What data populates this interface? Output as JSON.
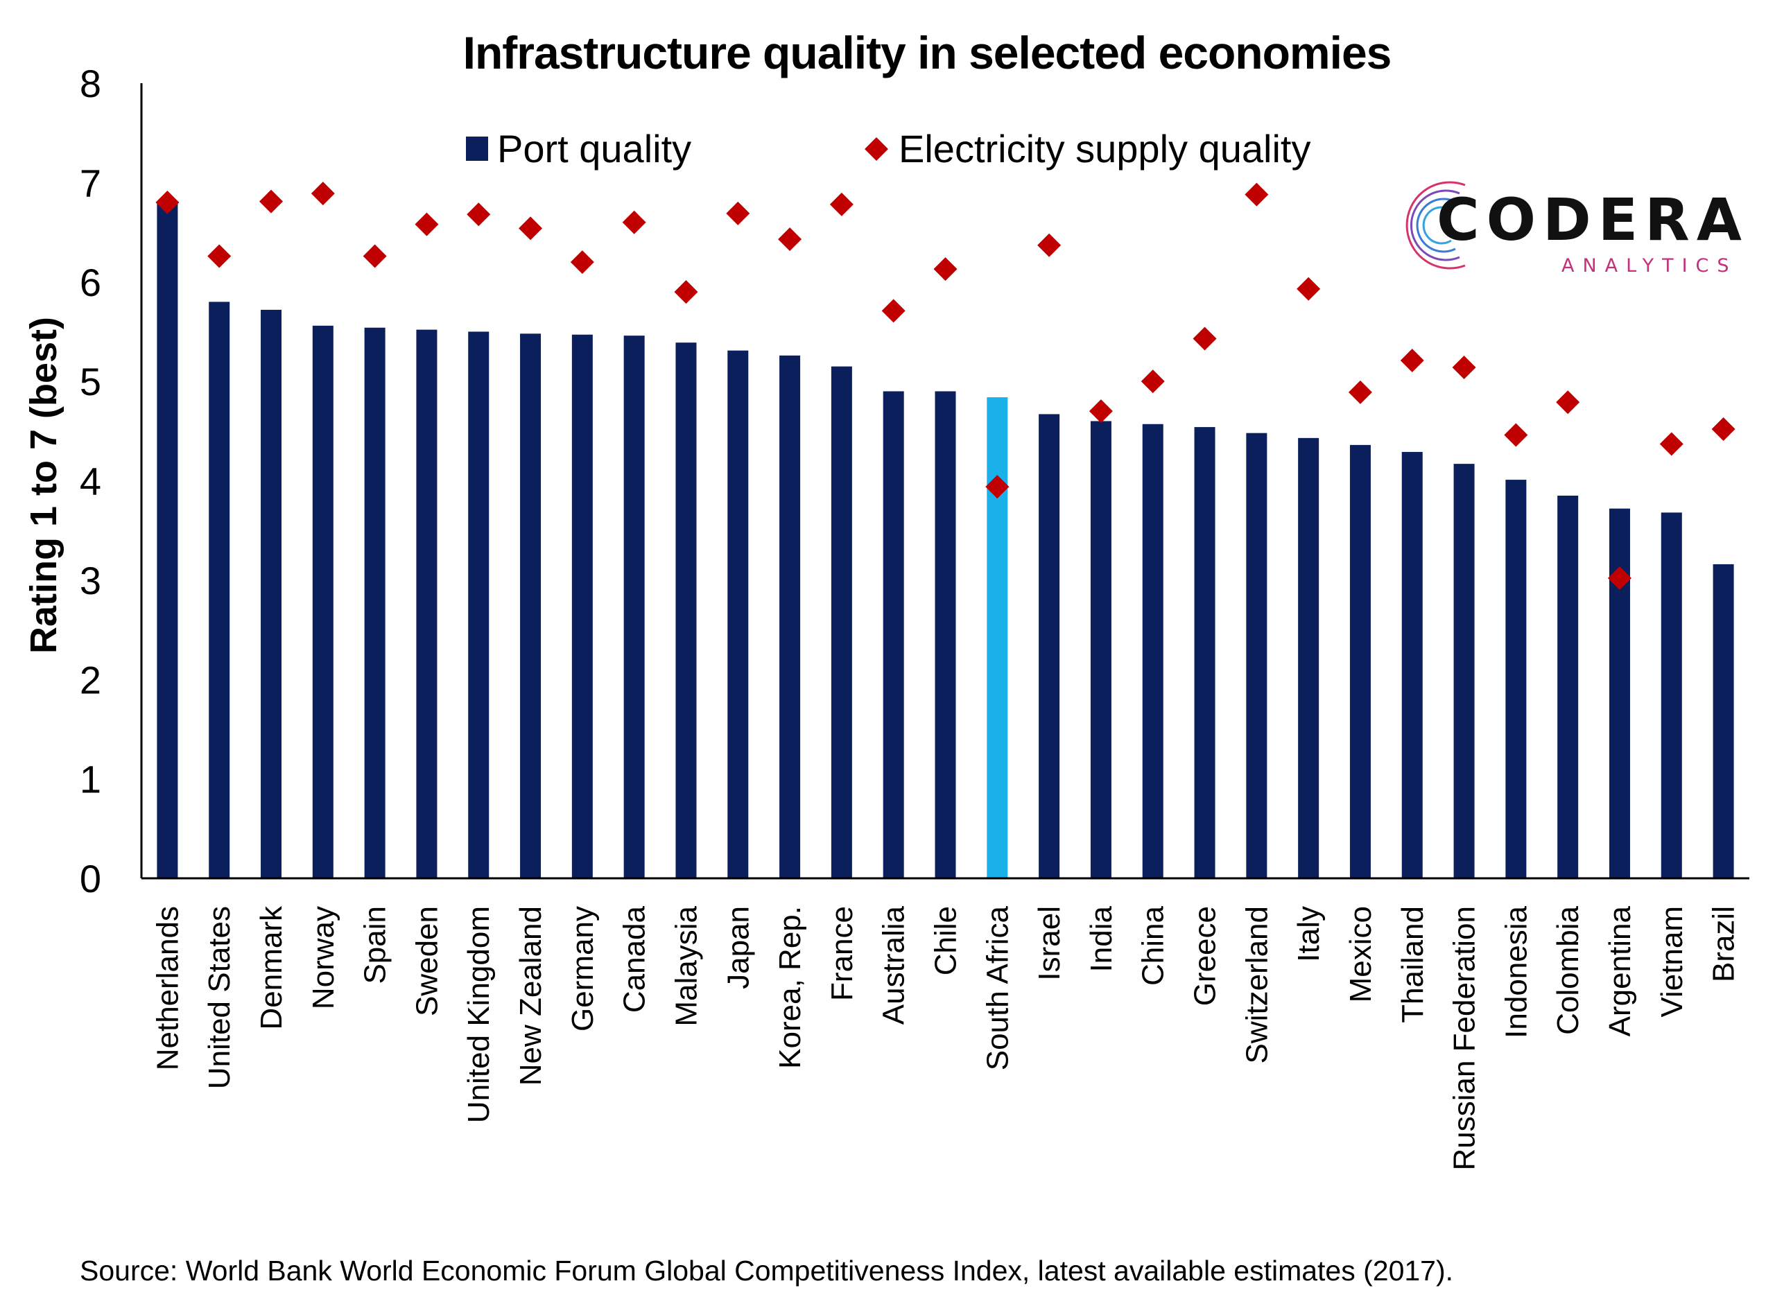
{
  "chart_data": {
    "type": "bar",
    "title": "Infrastructure quality in selected economies",
    "ylabel": "Rating 1 to 7 (best)",
    "xlabel": "",
    "ylim": [
      0,
      8
    ],
    "yticks": [
      0,
      1,
      2,
      3,
      4,
      5,
      6,
      7,
      8
    ],
    "grid": false,
    "legend_position": "top-center",
    "categories": [
      "Netherlands",
      "United States",
      "Denmark",
      "Norway",
      "Spain",
      "Sweden",
      "United Kingdom",
      "New Zealand",
      "Germany",
      "Canada",
      "Malaysia",
      "Japan",
      "Korea, Rep.",
      "France",
      "Australia",
      "Chile",
      "South Africa",
      "Israel",
      "India",
      "China",
      "Greece",
      "Switzerland",
      "Italy",
      "Mexico",
      "Thailand",
      "Russian Federation",
      "Indonesia",
      "Colombia",
      "Argentina",
      "Vietnam",
      "Brazil"
    ],
    "highlight_category": "South Africa",
    "series": [
      {
        "name": "Port quality",
        "type": "bar",
        "color": "#0b1f5c",
        "highlight_color": "#1ab0ea",
        "values": [
          6.8,
          5.8,
          5.72,
          5.56,
          5.54,
          5.52,
          5.5,
          5.48,
          5.47,
          5.46,
          5.39,
          5.31,
          5.26,
          5.15,
          4.9,
          4.9,
          4.84,
          4.67,
          4.6,
          4.57,
          4.54,
          4.48,
          4.43,
          4.36,
          4.29,
          4.17,
          4.01,
          3.85,
          3.72,
          3.68,
          3.16
        ]
      },
      {
        "name": "Electricity supply quality",
        "type": "scatter",
        "marker": "diamond",
        "color": "#c00000",
        "values": [
          6.8,
          6.26,
          6.81,
          6.89,
          6.26,
          6.58,
          6.68,
          6.54,
          6.2,
          6.6,
          5.9,
          6.69,
          6.43,
          6.78,
          5.71,
          6.13,
          3.94,
          6.37,
          4.7,
          5.0,
          5.43,
          6.88,
          5.93,
          4.89,
          5.21,
          5.14,
          4.46,
          4.79,
          3.02,
          4.37,
          4.52
        ]
      }
    ]
  },
  "source": "Source: World Bank World Economic Forum Global Competitiveness Index, latest available estimates (2017).",
  "logo": {
    "wordmark": "CODERA",
    "subtitle": "ANALYTICS"
  }
}
